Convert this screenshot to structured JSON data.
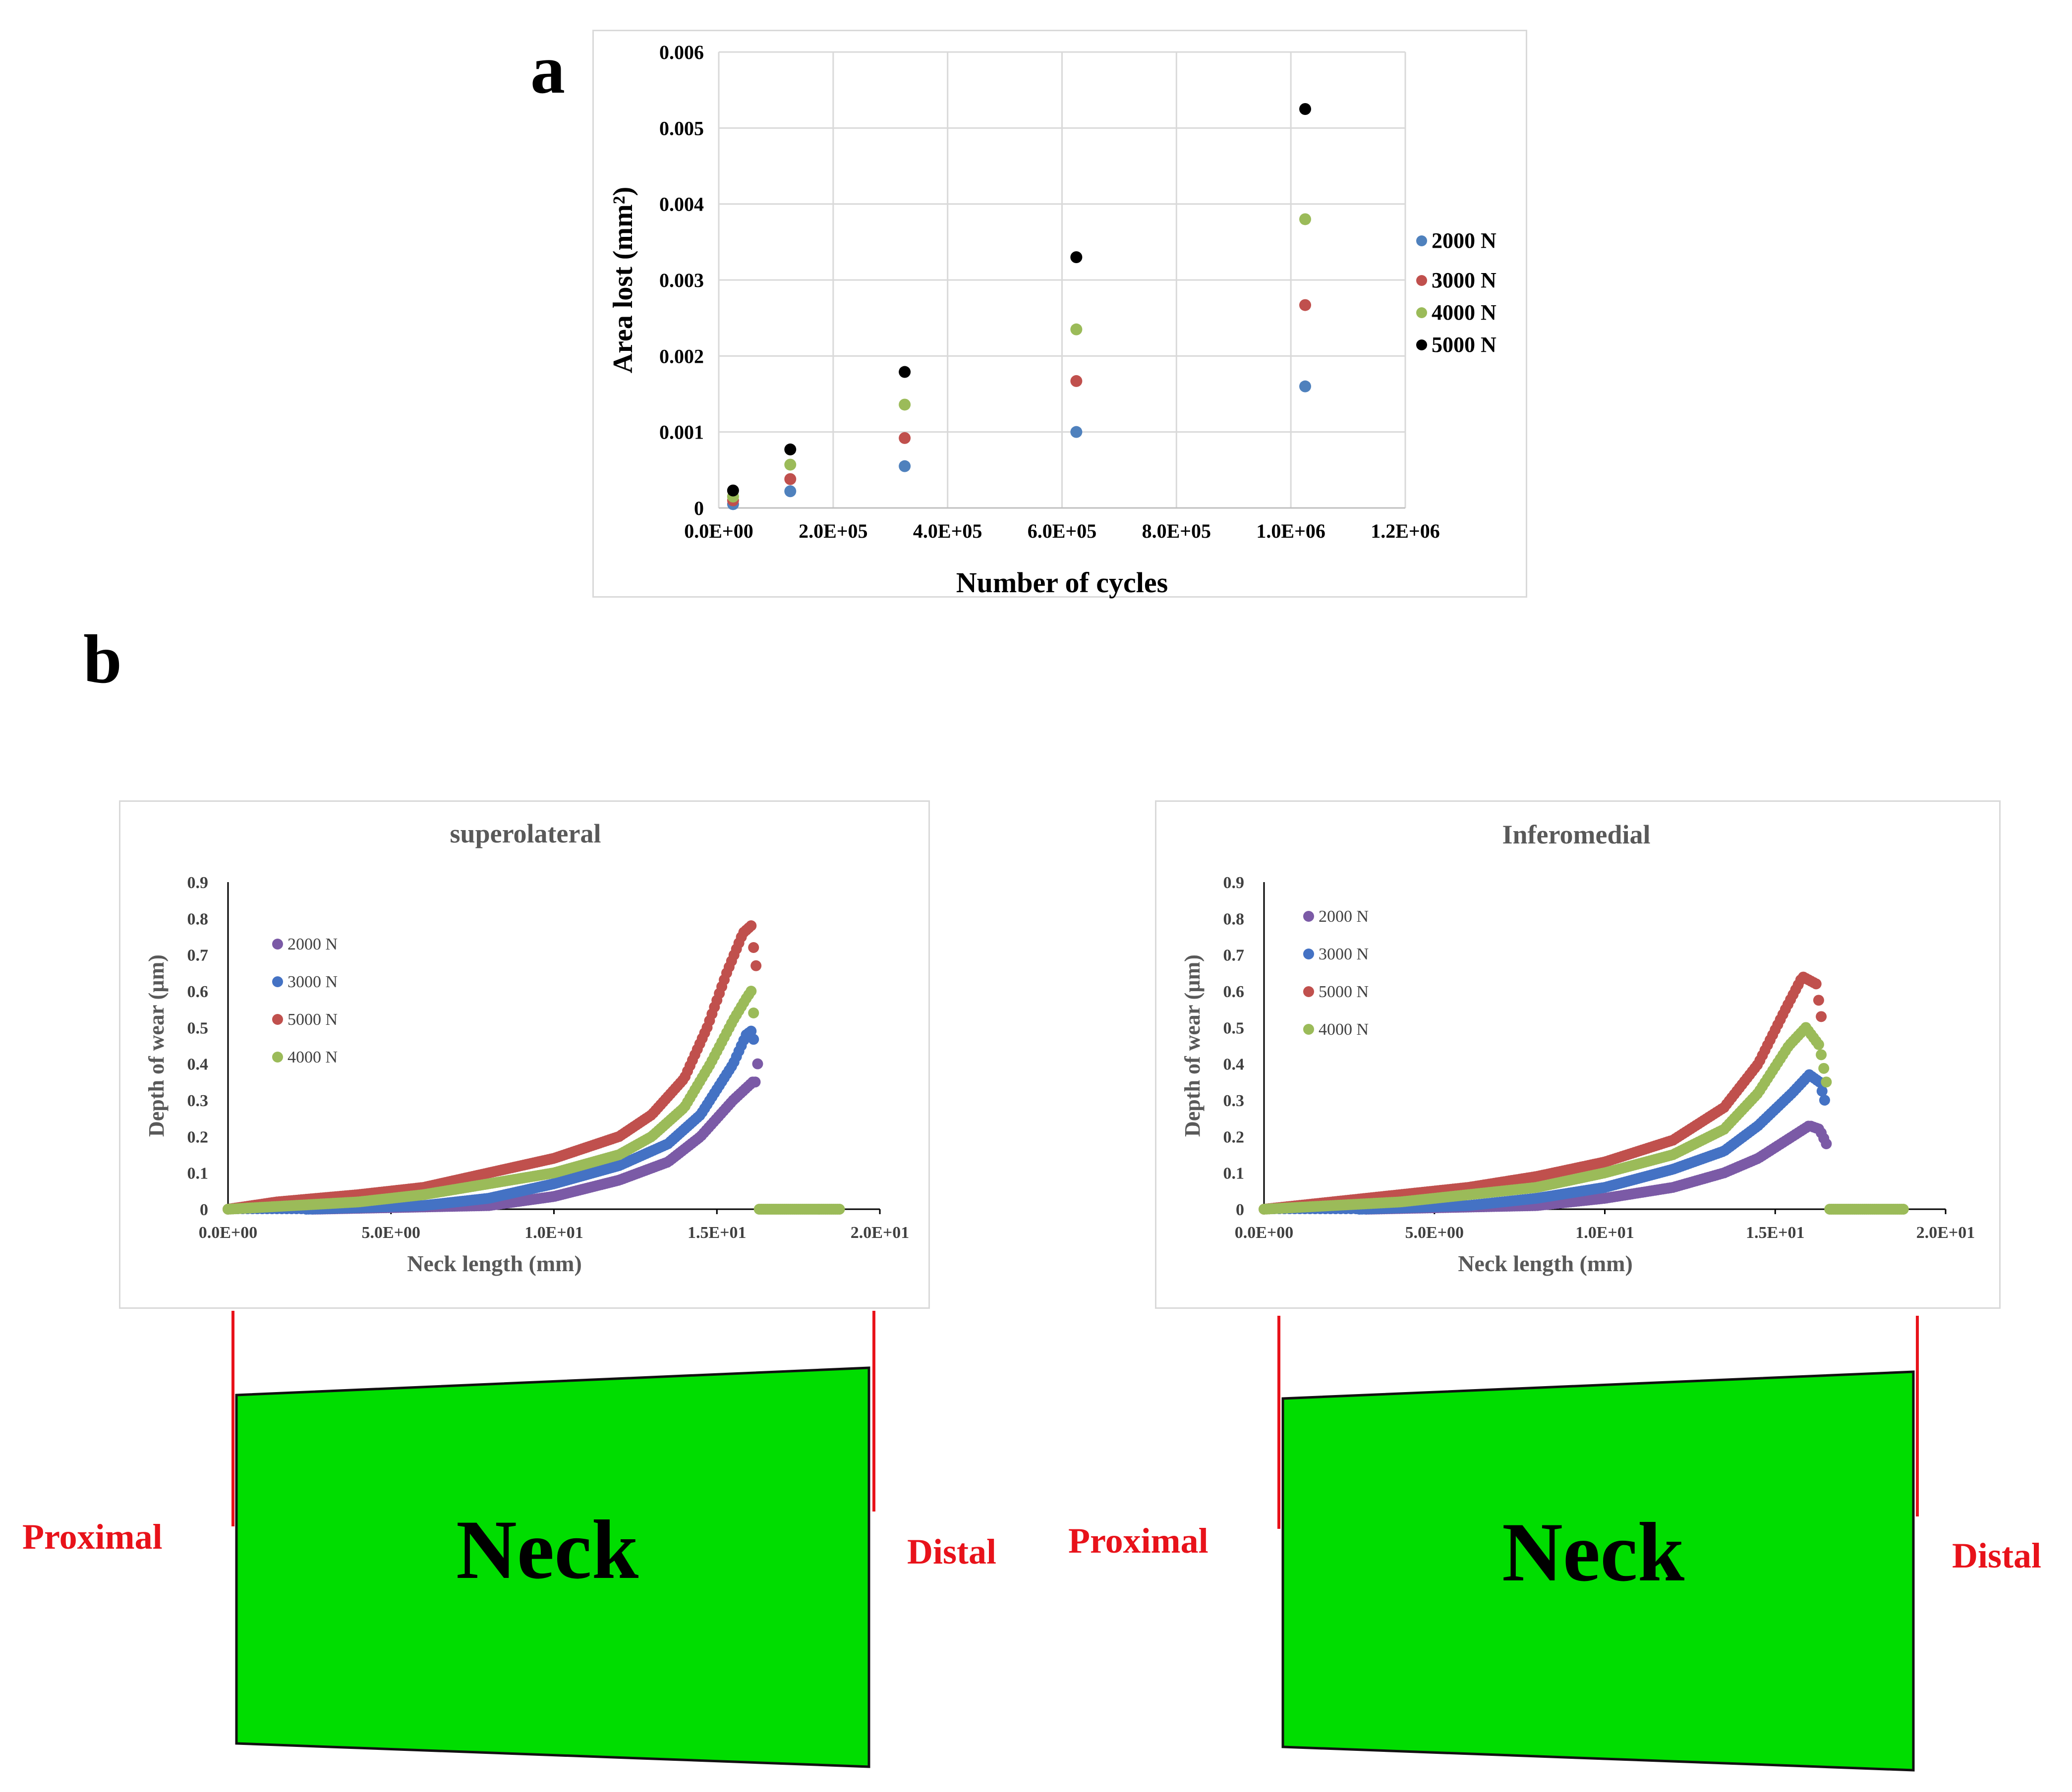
{
  "panel_labels": {
    "a": "a",
    "b": "b"
  },
  "colors": {
    "2000_blue": "#4f81bd",
    "3000_red": "#c0504d",
    "4000_green": "#9bbb59",
    "5000_black": "#000000",
    "purple": "#7b5aa6",
    "neck_fill": "#00dd00",
    "label_red": "#e8121a"
  },
  "chart_data": [
    {
      "id": "a",
      "type": "scatter",
      "title": "",
      "xlabel": "Number  of cycles",
      "ylabel": "Area lost (mm²)",
      "xlim": [
        0,
        1200000
      ],
      "ylim": [
        0,
        0.006
      ],
      "x_ticks": [
        0,
        200000,
        400000,
        600000,
        800000,
        1000000,
        1200000
      ],
      "x_tick_labels": [
        "0.0E+00",
        "2.0E+05",
        "4.0E+05",
        "6.0E+05",
        "8.0E+05",
        "1.0E+06",
        "1.2E+06"
      ],
      "y_ticks": [
        0,
        0.001,
        0.002,
        0.003,
        0.004,
        0.005,
        0.006
      ],
      "y_tick_labels": [
        "0",
        "0.001",
        "0.002",
        "0.003",
        "0.004",
        "0.005",
        "0.006"
      ],
      "grid": true,
      "legend_position": "right",
      "series": [
        {
          "name": "2000 N",
          "color": "#4f81bd",
          "x": [
            25000,
            125000,
            325000,
            625000,
            1025000
          ],
          "y": [
            5e-05,
            0.00022,
            0.00055,
            0.001,
            0.0016
          ]
        },
        {
          "name": "3000 N",
          "color": "#c0504d",
          "x": [
            25000,
            125000,
            325000,
            625000,
            1025000
          ],
          "y": [
            0.0001,
            0.00038,
            0.00092,
            0.00167,
            0.00267
          ]
        },
        {
          "name": "4000 N",
          "color": "#9bbb59",
          "x": [
            25000,
            125000,
            325000,
            625000,
            1025000
          ],
          "y": [
            0.00015,
            0.00057,
            0.00136,
            0.00235,
            0.0038
          ]
        },
        {
          "name": "5000 N",
          "color": "#000000",
          "x": [
            25000,
            125000,
            325000,
            625000,
            1025000
          ],
          "y": [
            0.00023,
            0.00077,
            0.00179,
            0.0033,
            0.00525
          ]
        }
      ]
    },
    {
      "id": "superolateral",
      "type": "scatter",
      "title": "superolateral",
      "xlabel": "Neck length (mm)",
      "ylabel": "Depth of wear  (µm)",
      "xlim": [
        0,
        20
      ],
      "ylim": [
        0,
        0.9
      ],
      "x_ticks": [
        0,
        5,
        10,
        15,
        20
      ],
      "x_tick_labels": [
        "0.0E+00",
        "5.0E+00",
        "1.0E+01",
        "1.5E+01",
        "2.0E+01"
      ],
      "y_ticks": [
        0,
        0.1,
        0.2,
        0.3,
        0.4,
        0.5,
        0.6,
        0.7,
        0.8,
        0.9
      ],
      "y_tick_labels": [
        "0",
        "0.1",
        "0.2",
        "0.3",
        "0.4",
        "0.5",
        "0.6",
        "0.7",
        "0.8",
        "0.9"
      ],
      "grid": false,
      "legend_position": "top-left",
      "x_end": 16.2,
      "flat_tail": [
        16.3,
        18.8
      ],
      "series": [
        {
          "name": "2000 N",
          "color": "#7b5aa6",
          "start": 2.6,
          "k": [
            [
              2.6,
              0
            ],
            [
              8,
              0.01
            ],
            [
              10,
              0.035
            ],
            [
              12,
              0.08
            ],
            [
              13.5,
              0.13
            ],
            [
              14.5,
              0.2
            ],
            [
              15.5,
              0.3
            ],
            [
              16.1,
              0.35
            ],
            [
              16.2,
              0.35
            ],
            [
              16.25,
              0.4
            ]
          ]
        },
        {
          "name": "3000 N",
          "color": "#4472c4",
          "start": 2.4,
          "k": [
            [
              2.4,
              0
            ],
            [
              6,
              0.01
            ],
            [
              8,
              0.03
            ],
            [
              10,
              0.07
            ],
            [
              12,
              0.12
            ],
            [
              13.5,
              0.18
            ],
            [
              14.5,
              0.26
            ],
            [
              15.5,
              0.4
            ],
            [
              15.9,
              0.48
            ],
            [
              16.05,
              0.49
            ],
            [
              16.15,
              0.46
            ]
          ]
        },
        {
          "name": "5000 N",
          "color": "#c0504d",
          "start": 0,
          "k": [
            [
              0,
              0
            ],
            [
              1.5,
              0.02
            ],
            [
              4,
              0.04
            ],
            [
              6,
              0.06
            ],
            [
              8,
              0.1
            ],
            [
              10,
              0.14
            ],
            [
              11,
              0.17
            ],
            [
              12,
              0.2
            ],
            [
              13,
              0.26
            ],
            [
              14,
              0.36
            ],
            [
              14.7,
              0.5
            ],
            [
              15.3,
              0.65
            ],
            [
              15.8,
              0.76
            ],
            [
              16.05,
              0.78
            ],
            [
              16.15,
              0.7
            ],
            [
              16.2,
              0.67
            ]
          ]
        },
        {
          "name": "4000 N",
          "color": "#9bbb59",
          "start": 0,
          "k": [
            [
              0,
              0
            ],
            [
              2,
              0.01
            ],
            [
              4,
              0.02
            ],
            [
              6,
              0.04
            ],
            [
              8,
              0.07
            ],
            [
              10,
              0.1
            ],
            [
              12,
              0.15
            ],
            [
              13,
              0.2
            ],
            [
              14,
              0.28
            ],
            [
              14.8,
              0.4
            ],
            [
              15.5,
              0.52
            ],
            [
              15.9,
              0.58
            ],
            [
              16.05,
              0.6
            ],
            [
              16.15,
              0.52
            ]
          ]
        }
      ]
    },
    {
      "id": "inferomedial",
      "type": "scatter",
      "title": "Inferomedial",
      "xlabel": "Neck length (mm)",
      "ylabel": "Depth of wear  (µm)",
      "xlim": [
        0,
        20
      ],
      "ylim": [
        0,
        0.9
      ],
      "x_ticks": [
        0,
        5,
        10,
        15,
        20
      ],
      "x_tick_labels": [
        "0.0E+00",
        "5.0E+00",
        "1.0E+01",
        "1.5E+01",
        "2.0E+01"
      ],
      "y_ticks": [
        0,
        0.1,
        0.2,
        0.3,
        0.4,
        0.5,
        0.6,
        0.7,
        0.8,
        0.9
      ],
      "y_tick_labels": [
        "0",
        "0.1",
        "0.2",
        "0.3",
        "0.4",
        "0.5",
        "0.6",
        "0.7",
        "0.8",
        "0.9"
      ],
      "grid": false,
      "legend_position": "top-left",
      "x_end": 16.5,
      "flat_tail": [
        16.6,
        18.8
      ],
      "series": [
        {
          "name": "2000 N",
          "color": "#7b5aa6",
          "start": 3.0,
          "k": [
            [
              3,
              0
            ],
            [
              8,
              0.01
            ],
            [
              10,
              0.03
            ],
            [
              12,
              0.06
            ],
            [
              13.5,
              0.1
            ],
            [
              14.5,
              0.14
            ],
            [
              15.5,
              0.2
            ],
            [
              16,
              0.23
            ],
            [
              16.3,
              0.22
            ],
            [
              16.5,
              0.18
            ]
          ]
        },
        {
          "name": "3000 N",
          "color": "#4472c4",
          "start": 2.8,
          "k": [
            [
              2.8,
              0
            ],
            [
              6,
              0.01
            ],
            [
              8,
              0.03
            ],
            [
              10,
              0.06
            ],
            [
              12,
              0.11
            ],
            [
              13.5,
              0.16
            ],
            [
              14.5,
              0.23
            ],
            [
              15.5,
              0.32
            ],
            [
              16,
              0.37
            ],
            [
              16.3,
              0.35
            ],
            [
              16.45,
              0.3
            ]
          ]
        },
        {
          "name": "5000 N",
          "color": "#c0504d",
          "start": 0,
          "k": [
            [
              0,
              0
            ],
            [
              2,
              0.02
            ],
            [
              4,
              0.04
            ],
            [
              6,
              0.06
            ],
            [
              8,
              0.09
            ],
            [
              10,
              0.13
            ],
            [
              12,
              0.19
            ],
            [
              13.5,
              0.28
            ],
            [
              14.5,
              0.4
            ],
            [
              15.3,
              0.55
            ],
            [
              15.8,
              0.64
            ],
            [
              16.2,
              0.62
            ],
            [
              16.4,
              0.5
            ]
          ]
        },
        {
          "name": "4000 N",
          "color": "#9bbb59",
          "start": 0,
          "k": [
            [
              0,
              0
            ],
            [
              2,
              0.01
            ],
            [
              4,
              0.02
            ],
            [
              6,
              0.04
            ],
            [
              8,
              0.06
            ],
            [
              10,
              0.1
            ],
            [
              12,
              0.15
            ],
            [
              13.5,
              0.22
            ],
            [
              14.5,
              0.32
            ],
            [
              15.4,
              0.45
            ],
            [
              15.9,
              0.5
            ],
            [
              16.3,
              0.45
            ],
            [
              16.5,
              0.35
            ]
          ]
        }
      ]
    }
  ],
  "neck_diagrams": [
    {
      "center_text": "Neck",
      "left_label": "Proximal",
      "right_label": "Distal"
    },
    {
      "center_text": "Neck",
      "left_label": "Proximal",
      "right_label": "Distal"
    }
  ]
}
